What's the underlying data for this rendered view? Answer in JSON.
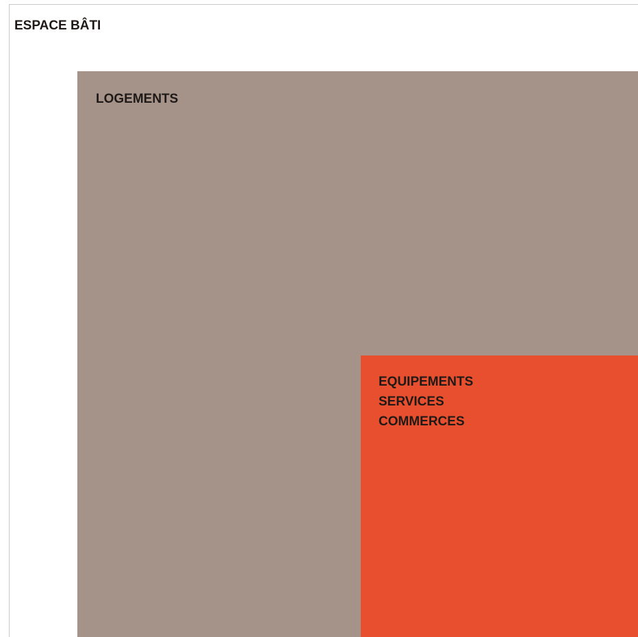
{
  "diagram": {
    "outer": {
      "label": "ESPACE BÂTI",
      "color": "#ffffff"
    },
    "logements": {
      "label": "LOGEMENTS",
      "color": "#a59389"
    },
    "equipements": {
      "lines": [
        "EQUIPEMENTS",
        "SERVICES",
        "COMMERCES"
      ],
      "color": "#e84f2e"
    }
  }
}
